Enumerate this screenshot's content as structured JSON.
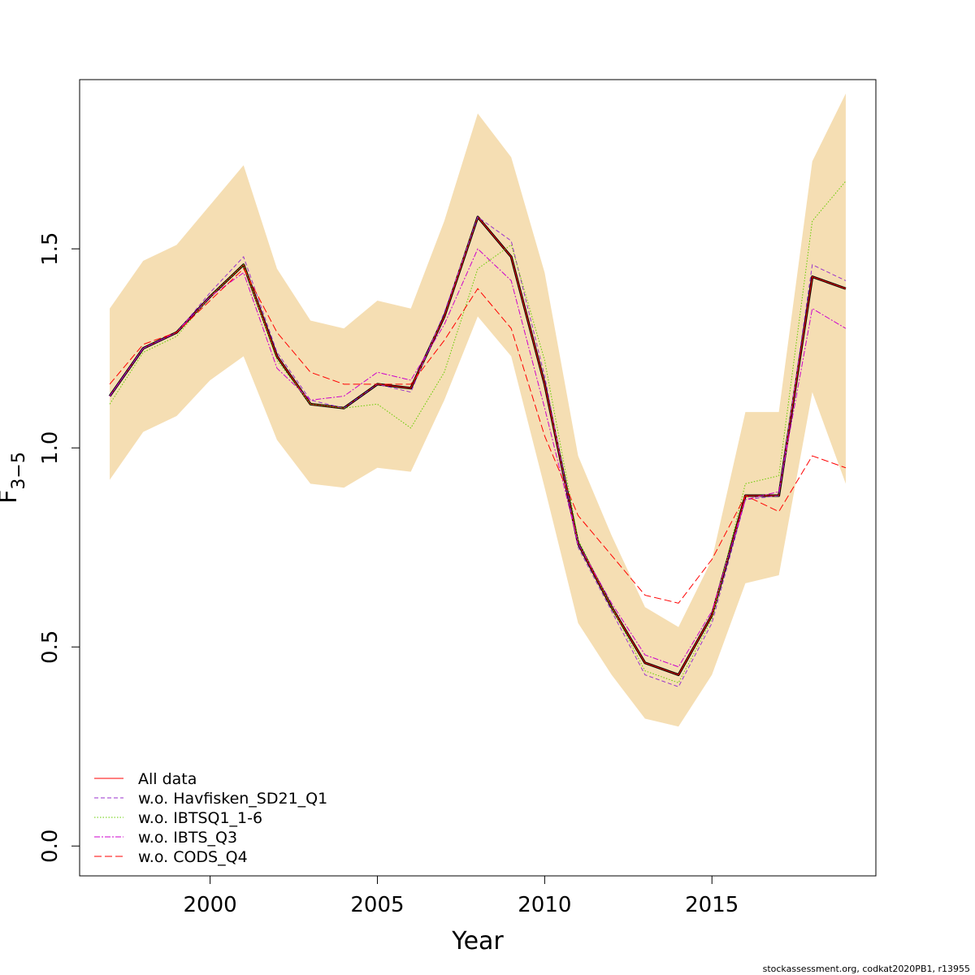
{
  "chart_data": {
    "type": "line",
    "xlabel": "Year",
    "ylabel": "F",
    "ylabel_subscript": "3−5",
    "xlim": [
      1996.1,
      2019.9
    ],
    "ylim": [
      -0.075,
      1.925
    ],
    "xticks": [
      2000,
      2005,
      2010,
      2015
    ],
    "yticks": [
      0.0,
      0.5,
      1.0,
      1.5
    ],
    "ytick_labels": [
      "0.0",
      "0.5",
      "1.0",
      "1.5"
    ],
    "x": [
      1997,
      1998,
      1999,
      2000,
      2001,
      2002,
      2003,
      2004,
      2005,
      2006,
      2007,
      2008,
      2009,
      2010,
      2011,
      2012,
      2013,
      2014,
      2015,
      2016,
      2017,
      2018,
      2019
    ],
    "band": {
      "color": "#F5DEB3",
      "lower": [
        0.92,
        1.04,
        1.08,
        1.17,
        1.23,
        1.02,
        0.91,
        0.9,
        0.95,
        0.94,
        1.12,
        1.33,
        1.23,
        0.9,
        0.56,
        0.43,
        0.32,
        0.3,
        0.43,
        0.66,
        0.68,
        1.14,
        0.91
      ],
      "upper": [
        1.35,
        1.47,
        1.51,
        1.61,
        1.71,
        1.45,
        1.32,
        1.3,
        1.37,
        1.35,
        1.57,
        1.84,
        1.73,
        1.44,
        0.98,
        0.78,
        0.6,
        0.55,
        0.72,
        1.09,
        1.09,
        1.72,
        1.89
      ]
    },
    "main_series": {
      "color": "#000000",
      "values": [
        1.13,
        1.25,
        1.29,
        1.38,
        1.46,
        1.23,
        1.11,
        1.1,
        1.16,
        1.15,
        1.33,
        1.58,
        1.48,
        1.16,
        0.76,
        0.6,
        0.46,
        0.43,
        0.58,
        0.88,
        0.88,
        1.43,
        1.4
      ]
    },
    "series": [
      {
        "name": "All data",
        "color": "#FF0000",
        "dash": "",
        "values": [
          1.13,
          1.25,
          1.29,
          1.38,
          1.46,
          1.23,
          1.11,
          1.1,
          1.16,
          1.15,
          1.33,
          1.58,
          1.48,
          1.16,
          0.76,
          0.6,
          0.46,
          0.43,
          0.58,
          0.88,
          0.88,
          1.43,
          1.4
        ]
      },
      {
        "name": "w.o. Havfisken_SD21_Q1",
        "color": "#9932CC",
        "dash": "5 3",
        "values": [
          1.13,
          1.25,
          1.29,
          1.39,
          1.48,
          1.24,
          1.12,
          1.1,
          1.16,
          1.14,
          1.34,
          1.58,
          1.52,
          1.18,
          0.75,
          0.59,
          0.43,
          0.4,
          0.56,
          0.87,
          0.88,
          1.46,
          1.42
        ]
      },
      {
        "name": "w.o. IBTSQ1_1-6",
        "color": "#66CC00",
        "dash": "1.5 2",
        "values": [
          1.11,
          1.24,
          1.28,
          1.38,
          1.46,
          1.22,
          1.11,
          1.1,
          1.11,
          1.05,
          1.19,
          1.45,
          1.51,
          1.22,
          0.77,
          0.6,
          0.44,
          0.41,
          0.57,
          0.91,
          0.93,
          1.57,
          1.67
        ]
      },
      {
        "name": "w.o. IBTS_Q3",
        "color": "#CC00CC",
        "dash": "7 2 2 2",
        "values": [
          1.13,
          1.25,
          1.29,
          1.38,
          1.44,
          1.2,
          1.12,
          1.13,
          1.19,
          1.17,
          1.31,
          1.5,
          1.42,
          1.1,
          0.76,
          0.61,
          0.48,
          0.45,
          0.59,
          0.87,
          0.89,
          1.35,
          1.3
        ]
      },
      {
        "name": "w.o. CODS_Q4",
        "color": "#FF0000",
        "dash": "9 4",
        "values": [
          1.16,
          1.26,
          1.29,
          1.37,
          1.45,
          1.29,
          1.19,
          1.16,
          1.16,
          1.16,
          1.27,
          1.4,
          1.3,
          1.03,
          0.83,
          0.73,
          0.63,
          0.61,
          0.72,
          0.88,
          0.84,
          0.98,
          0.95
        ]
      }
    ],
    "legend_position": "bottom-left"
  },
  "footer": "stockassessment.org, codkat2020PB1, r13955"
}
